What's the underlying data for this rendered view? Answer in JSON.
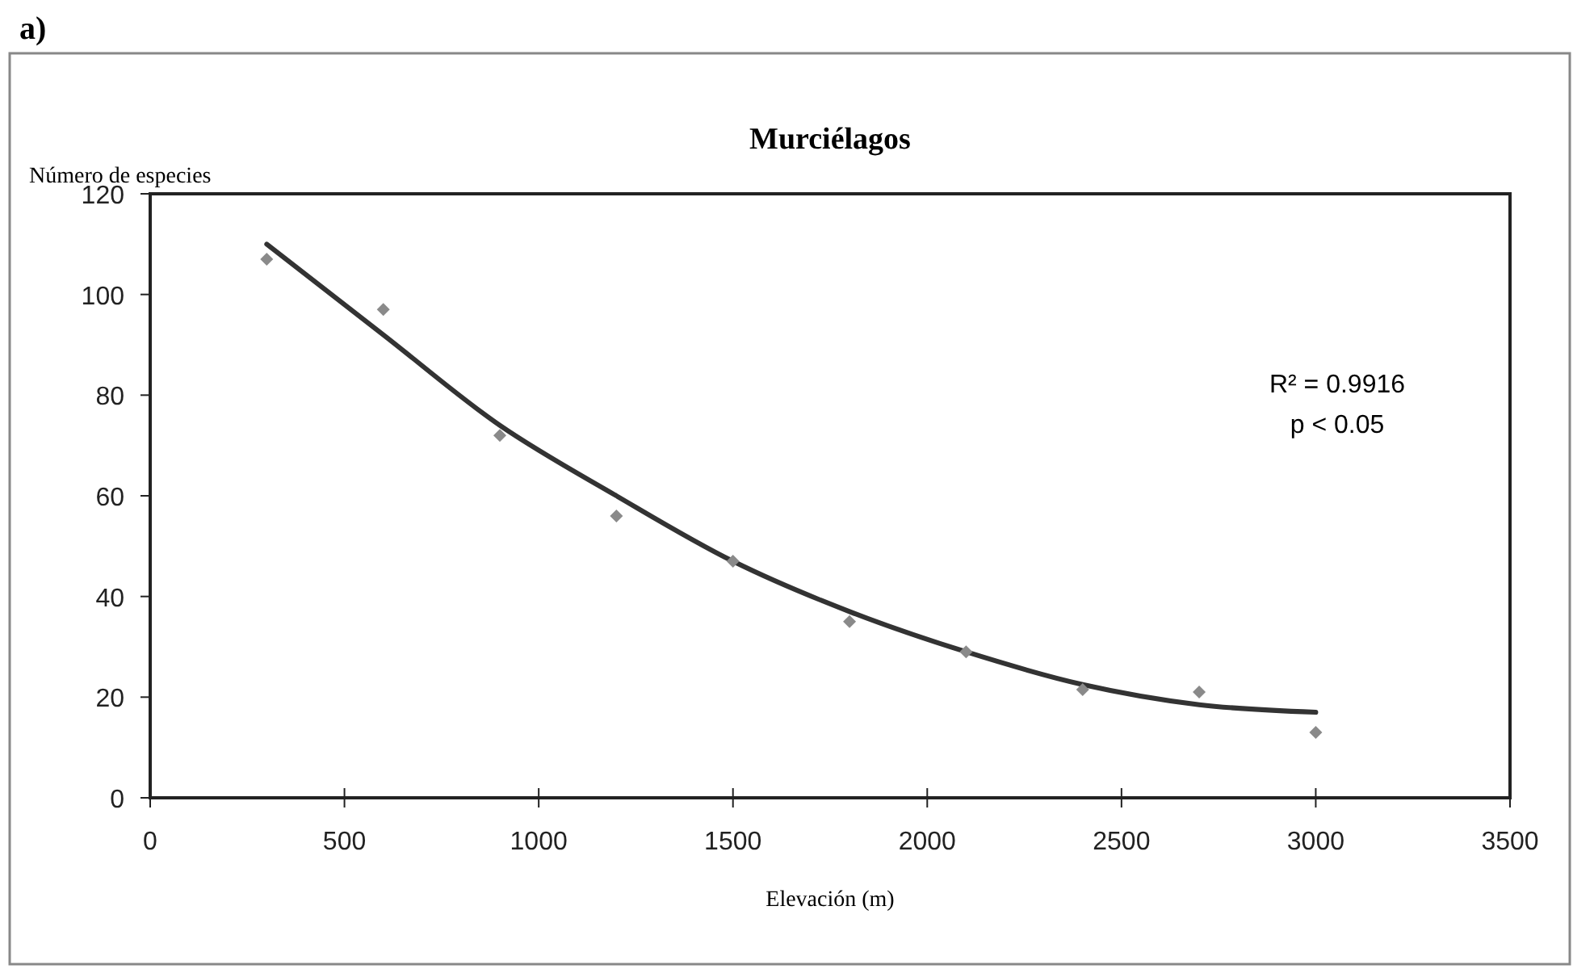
{
  "chart_data": {
    "type": "scatter",
    "title": "Murciélagos",
    "xlabel": "Elevación (m)",
    "ylabel": "Número de especies",
    "annotations": [
      "a)",
      "R² = 0.9916",
      "p < 0.05"
    ],
    "xlim": [
      0,
      3500
    ],
    "xticks": [
      0,
      500,
      1000,
      1500,
      2000,
      2500,
      3000,
      3500
    ],
    "ylim": [
      0,
      120
    ],
    "yticks": [
      0,
      20,
      40,
      60,
      80,
      100,
      120
    ],
    "grid": false,
    "series": [
      {
        "color": "#8a8a8a",
        "marker": "diamond",
        "x": [
          300,
          600,
          900,
          1200,
          1500,
          1800,
          2100,
          2400,
          2700,
          3000
        ],
        "values": [
          107,
          97,
          72,
          56,
          47,
          35,
          29,
          21.5,
          21,
          13
        ]
      },
      {
        "type": "line",
        "color": "#333333",
        "marker": "none",
        "line_style": "solid",
        "x": [
          300,
          600,
          900,
          1200,
          1500,
          1800,
          2100,
          2400,
          2700,
          3000
        ],
        "values": [
          110,
          92,
          74,
          60,
          47,
          37,
          29,
          22.5,
          18.5,
          17
        ]
      }
    ]
  }
}
